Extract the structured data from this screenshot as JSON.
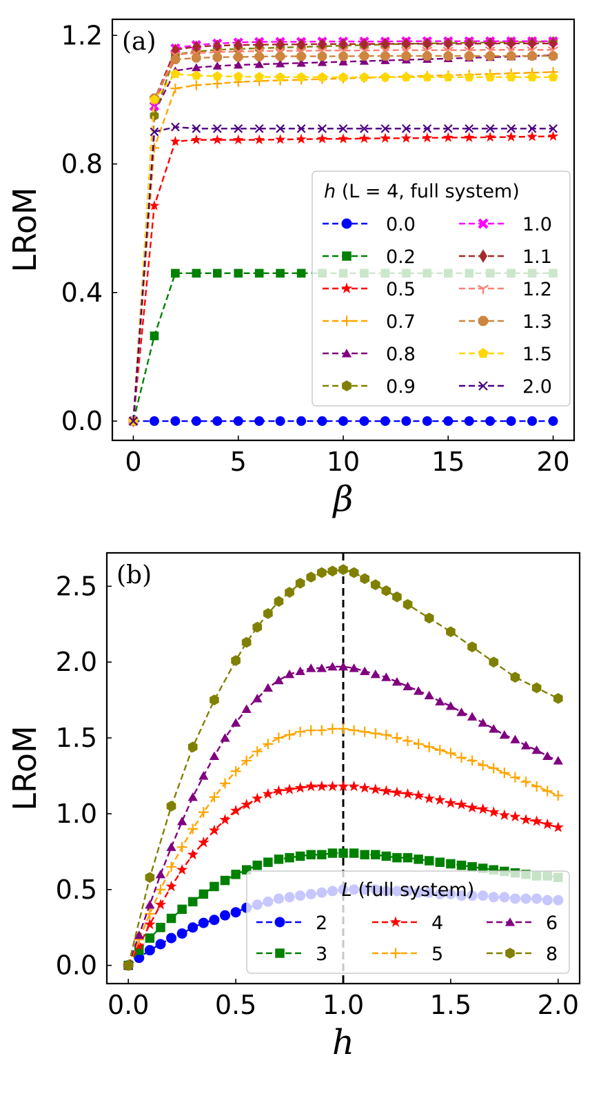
{
  "chart_data": [
    {
      "type": "line",
      "panel_label": "(a)",
      "xlabel": "β",
      "ylabel": "LRoM",
      "xlim": [
        -1,
        21
      ],
      "ylim": [
        -0.06,
        1.25
      ],
      "xticks": [
        0,
        5,
        10,
        15,
        20
      ],
      "xtick_labels": [
        "0",
        "5",
        "10",
        "15",
        "20"
      ],
      "yticks": [
        0.0,
        0.4,
        0.8,
        1.2
      ],
      "ytick_labels": [
        "0.0",
        "0.4",
        "0.8",
        "1.2"
      ],
      "grid": false,
      "legend": {
        "title_var": "h",
        "title_rest": " (L = 4, full system)",
        "placement": "center-right",
        "columns": 2
      },
      "x": [
        0,
        1,
        2,
        3,
        4,
        5,
        6,
        7,
        8,
        9,
        10,
        11,
        12,
        13,
        14,
        15,
        16,
        17,
        18,
        19,
        20
      ],
      "series": [
        {
          "name": "0.0",
          "color": "#0000ff",
          "marker": "circle",
          "plateau": 0.0,
          "values": [
            0,
            0,
            0,
            0,
            0,
            0,
            0,
            0,
            0,
            0,
            0,
            0,
            0,
            0,
            0,
            0,
            0,
            0,
            0,
            0,
            0
          ]
        },
        {
          "name": "0.2",
          "color": "#008000",
          "marker": "square",
          "values": [
            0,
            0.265,
            0.46,
            0.46,
            0.46,
            0.46,
            0.46,
            0.46,
            0.46,
            0.46,
            0.46,
            0.46,
            0.46,
            0.46,
            0.46,
            0.46,
            0.46,
            0.46,
            0.46,
            0.46,
            0.46
          ]
        },
        {
          "name": "0.5",
          "color": "#ff0000",
          "marker": "star",
          "values": [
            0,
            0.67,
            0.87,
            0.875,
            0.875,
            0.875,
            0.875,
            0.876,
            0.877,
            0.878,
            0.878,
            0.879,
            0.88,
            0.88,
            0.881,
            0.882,
            0.882,
            0.883,
            0.884,
            0.885,
            0.886
          ]
        },
        {
          "name": "0.7",
          "color": "#ffa500",
          "marker": "plus",
          "values": [
            0,
            0.85,
            1.035,
            1.045,
            1.05,
            1.055,
            1.058,
            1.06,
            1.062,
            1.064,
            1.066,
            1.068,
            1.07,
            1.072,
            1.074,
            1.076,
            1.078,
            1.08,
            1.082,
            1.084,
            1.086
          ]
        },
        {
          "name": "0.8",
          "color": "#800080",
          "marker": "triangle",
          "values": [
            0,
            0.96,
            1.09,
            1.1,
            1.105,
            1.108,
            1.11,
            1.112,
            1.114,
            1.116,
            1.118,
            1.12,
            1.122,
            1.124,
            1.126,
            1.128,
            1.13,
            1.132,
            1.134,
            1.136,
            1.138
          ]
        },
        {
          "name": "0.9",
          "color": "#808000",
          "marker": "hexagon",
          "values": [
            0,
            0.95,
            1.14,
            1.15,
            1.155,
            1.158,
            1.16,
            1.162,
            1.164,
            1.166,
            1.168,
            1.17,
            1.172,
            1.174,
            1.175,
            1.176,
            1.177,
            1.178,
            1.179,
            1.18,
            1.181
          ]
        },
        {
          "name": "1.0",
          "color": "#ff00ff",
          "marker": "xfilled",
          "values": [
            0,
            0.98,
            1.16,
            1.17,
            1.175,
            1.178,
            1.18,
            1.18,
            1.18,
            1.181,
            1.181,
            1.181,
            1.181,
            1.182,
            1.182,
            1.182,
            1.182,
            1.182,
            1.182,
            1.182,
            1.182
          ]
        },
        {
          "name": "1.1",
          "color": "#a52a2a",
          "marker": "diamond",
          "values": [
            0,
            1.0,
            1.155,
            1.165,
            1.168,
            1.17,
            1.171,
            1.172,
            1.172,
            1.173,
            1.173,
            1.173,
            1.174,
            1.174,
            1.174,
            1.174,
            1.174,
            1.175,
            1.175,
            1.175,
            1.175
          ]
        },
        {
          "name": "1.2",
          "color": "#fa8072",
          "marker": "tri",
          "values": [
            0,
            1.0,
            1.14,
            1.145,
            1.148,
            1.15,
            1.151,
            1.152,
            1.152,
            1.153,
            1.153,
            1.153,
            1.154,
            1.154,
            1.154,
            1.154,
            1.154,
            1.155,
            1.155,
            1.155,
            1.155
          ]
        },
        {
          "name": "1.3",
          "color": "#cd853f",
          "marker": "octagon",
          "values": [
            0,
            1.005,
            1.125,
            1.13,
            1.132,
            1.133,
            1.134,
            1.135,
            1.135,
            1.135,
            1.135,
            1.136,
            1.136,
            1.136,
            1.136,
            1.136,
            1.136,
            1.136,
            1.136,
            1.136,
            1.136
          ]
        },
        {
          "name": "1.5",
          "color": "#ffd700",
          "marker": "pentagon",
          "values": [
            0,
            1.0,
            1.08,
            1.075,
            1.073,
            1.072,
            1.071,
            1.07,
            1.07,
            1.07,
            1.07,
            1.07,
            1.07,
            1.07,
            1.07,
            1.07,
            1.07,
            1.07,
            1.07,
            1.07,
            1.07
          ]
        },
        {
          "name": "2.0",
          "color": "#4b0082",
          "marker": "x",
          "values": [
            0,
            0.9,
            0.915,
            0.91,
            0.91,
            0.91,
            0.91,
            0.91,
            0.91,
            0.91,
            0.91,
            0.91,
            0.91,
            0.91,
            0.91,
            0.91,
            0.91,
            0.91,
            0.91,
            0.91,
            0.91
          ]
        }
      ]
    },
    {
      "type": "line",
      "panel_label": "(b)",
      "xlabel": "h",
      "ylabel": "LRoM",
      "xlim": [
        -0.1,
        2.1
      ],
      "ylim": [
        -0.12,
        2.72
      ],
      "xticks": [
        0,
        0.5,
        1.0,
        1.5,
        2.0
      ],
      "xtick_labels": [
        "0.0",
        "0.5",
        "1.0",
        "1.5",
        "2.0"
      ],
      "yticks": [
        0,
        0.5,
        1.0,
        1.5,
        2.0,
        2.5
      ],
      "ytick_labels": [
        "0.0",
        "0.5",
        "1.0",
        "1.5",
        "2.0",
        "2.5"
      ],
      "grid": false,
      "vline_x": 1.0,
      "legend": {
        "title_var": "L",
        "title_rest": " (full system)",
        "placement": "lower-right",
        "columns": 3
      },
      "series": [
        {
          "name": "2",
          "color": "#0000ff",
          "marker": "circle",
          "x": [
            0,
            0.05,
            0.1,
            0.15,
            0.2,
            0.25,
            0.3,
            0.35,
            0.4,
            0.45,
            0.5,
            0.55,
            0.6,
            0.65,
            0.7,
            0.75,
            0.8,
            0.85,
            0.9,
            0.95,
            1.0,
            1.05,
            1.1,
            1.15,
            1.2,
            1.25,
            1.3,
            1.35,
            1.4,
            1.45,
            1.5,
            1.55,
            1.6,
            1.65,
            1.7,
            1.75,
            1.8,
            1.85,
            1.9,
            1.95,
            2.0
          ],
          "values": [
            0,
            0.05,
            0.1,
            0.14,
            0.18,
            0.21,
            0.25,
            0.28,
            0.3,
            0.33,
            0.35,
            0.38,
            0.4,
            0.42,
            0.44,
            0.45,
            0.46,
            0.47,
            0.48,
            0.49,
            0.5,
            0.5,
            0.5,
            0.5,
            0.49,
            0.49,
            0.49,
            0.48,
            0.48,
            0.47,
            0.47,
            0.46,
            0.46,
            0.46,
            0.45,
            0.45,
            0.44,
            0.44,
            0.44,
            0.43,
            0.43
          ]
        },
        {
          "name": "3",
          "color": "#008000",
          "marker": "square",
          "x": [
            0,
            0.05,
            0.1,
            0.15,
            0.2,
            0.25,
            0.3,
            0.35,
            0.4,
            0.45,
            0.5,
            0.55,
            0.6,
            0.65,
            0.7,
            0.75,
            0.8,
            0.85,
            0.9,
            0.95,
            1.0,
            1.05,
            1.1,
            1.15,
            1.2,
            1.25,
            1.3,
            1.35,
            1.4,
            1.45,
            1.5,
            1.55,
            1.6,
            1.65,
            1.7,
            1.75,
            1.8,
            1.85,
            1.9,
            1.95,
            2.0
          ],
          "values": [
            0,
            0.1,
            0.18,
            0.25,
            0.31,
            0.37,
            0.42,
            0.47,
            0.52,
            0.56,
            0.6,
            0.63,
            0.66,
            0.68,
            0.7,
            0.71,
            0.72,
            0.73,
            0.73,
            0.74,
            0.74,
            0.74,
            0.73,
            0.73,
            0.72,
            0.71,
            0.71,
            0.7,
            0.69,
            0.68,
            0.67,
            0.66,
            0.65,
            0.64,
            0.63,
            0.62,
            0.61,
            0.6,
            0.59,
            0.59,
            0.58
          ]
        },
        {
          "name": "4",
          "color": "#ff0000",
          "marker": "star",
          "x": [
            0,
            0.05,
            0.1,
            0.15,
            0.2,
            0.25,
            0.3,
            0.35,
            0.4,
            0.45,
            0.5,
            0.55,
            0.6,
            0.65,
            0.7,
            0.75,
            0.8,
            0.85,
            0.9,
            0.95,
            1.0,
            1.05,
            1.1,
            1.15,
            1.2,
            1.25,
            1.3,
            1.35,
            1.4,
            1.45,
            1.5,
            1.55,
            1.6,
            1.65,
            1.7,
            1.75,
            1.8,
            1.85,
            1.9,
            1.95,
            2.0
          ],
          "values": [
            0,
            0.13,
            0.27,
            0.4,
            0.52,
            0.63,
            0.73,
            0.81,
            0.89,
            0.96,
            1.02,
            1.06,
            1.1,
            1.13,
            1.15,
            1.16,
            1.17,
            1.18,
            1.18,
            1.18,
            1.18,
            1.18,
            1.17,
            1.16,
            1.15,
            1.14,
            1.13,
            1.12,
            1.1,
            1.09,
            1.07,
            1.06,
            1.04,
            1.03,
            1.01,
            0.99,
            0.98,
            0.96,
            0.95,
            0.93,
            0.91
          ]
        },
        {
          "name": "5",
          "color": "#ffa500",
          "marker": "plus",
          "x": [
            0,
            0.05,
            0.1,
            0.15,
            0.2,
            0.25,
            0.3,
            0.35,
            0.4,
            0.45,
            0.5,
            0.55,
            0.6,
            0.65,
            0.7,
            0.75,
            0.8,
            0.85,
            0.9,
            0.95,
            1.0,
            1.05,
            1.1,
            1.15,
            1.2,
            1.25,
            1.3,
            1.35,
            1.4,
            1.45,
            1.5,
            1.55,
            1.6,
            1.65,
            1.7,
            1.75,
            1.8,
            1.85,
            1.9,
            1.95,
            2.0
          ],
          "values": [
            0,
            0.17,
            0.34,
            0.5,
            0.65,
            0.78,
            0.9,
            1.01,
            1.11,
            1.2,
            1.28,
            1.35,
            1.41,
            1.46,
            1.5,
            1.52,
            1.54,
            1.55,
            1.55,
            1.56,
            1.56,
            1.55,
            1.54,
            1.53,
            1.52,
            1.5,
            1.48,
            1.46,
            1.44,
            1.42,
            1.4,
            1.37,
            1.35,
            1.32,
            1.3,
            1.27,
            1.24,
            1.21,
            1.18,
            1.15,
            1.12
          ]
        },
        {
          "name": "6",
          "color": "#800080",
          "marker": "triangle",
          "x": [
            0,
            0.05,
            0.1,
            0.15,
            0.2,
            0.25,
            0.3,
            0.35,
            0.4,
            0.45,
            0.5,
            0.55,
            0.6,
            0.65,
            0.7,
            0.75,
            0.8,
            0.85,
            0.9,
            0.95,
            1.0,
            1.05,
            1.1,
            1.15,
            1.2,
            1.25,
            1.3,
            1.35,
            1.4,
            1.45,
            1.5,
            1.55,
            1.6,
            1.65,
            1.7,
            1.75,
            1.8,
            1.85,
            1.9,
            1.95,
            2.0
          ],
          "values": [
            0,
            0.2,
            0.4,
            0.6,
            0.78,
            0.95,
            1.11,
            1.25,
            1.38,
            1.5,
            1.6,
            1.69,
            1.76,
            1.83,
            1.88,
            1.92,
            1.94,
            1.96,
            1.96,
            1.97,
            1.97,
            1.96,
            1.94,
            1.92,
            1.9,
            1.87,
            1.84,
            1.81,
            1.78,
            1.74,
            1.71,
            1.67,
            1.64,
            1.6,
            1.56,
            1.52,
            1.49,
            1.45,
            1.42,
            1.38,
            1.35
          ]
        },
        {
          "name": "8",
          "color": "#808000",
          "marker": "hexagon",
          "x": [
            0,
            0.1,
            0.2,
            0.3,
            0.4,
            0.5,
            0.55,
            0.6,
            0.65,
            0.7,
            0.75,
            0.8,
            0.85,
            0.9,
            0.95,
            1.0,
            1.05,
            1.1,
            1.15,
            1.2,
            1.25,
            1.3,
            1.4,
            1.5,
            1.6,
            1.7,
            1.8,
            1.9,
            2.0
          ],
          "values": [
            0,
            0.58,
            1.05,
            1.44,
            1.75,
            2.01,
            2.13,
            2.23,
            2.32,
            2.4,
            2.46,
            2.52,
            2.56,
            2.59,
            2.6,
            2.61,
            2.59,
            2.55,
            2.51,
            2.47,
            2.43,
            2.38,
            2.29,
            2.2,
            2.1,
            2.0,
            1.9,
            1.83,
            1.76
          ]
        }
      ]
    }
  ]
}
